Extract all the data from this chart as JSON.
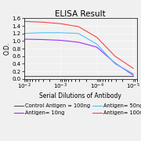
{
  "title": "ELISA Result",
  "xlabel": "Serial Dilutions of Antibody",
  "ylabel": "O.D.",
  "ylim": [
    0,
    1.6
  ],
  "yticks": [
    0,
    0.2,
    0.4,
    0.6,
    0.8,
    1.0,
    1.2,
    1.4,
    1.6
  ],
  "x_values": [
    0.01,
    0.00316,
    0.001,
    0.000316,
    0.0001,
    3.16e-05,
    1e-05
  ],
  "series": [
    {
      "label": "Control Antigen = 100ng",
      "color": "#555555",
      "values": [
        0.07,
        0.07,
        0.07,
        0.07,
        0.07,
        0.07,
        0.07
      ]
    },
    {
      "label": "Antigen= 10ng",
      "color": "#9B30FF",
      "values": [
        1.05,
        1.04,
        1.02,
        0.97,
        0.84,
        0.42,
        0.1
      ]
    },
    {
      "label": "Antigen= 50ng",
      "color": "#4FC3F7",
      "values": [
        1.2,
        1.22,
        1.22,
        1.2,
        0.92,
        0.4,
        0.14
      ]
    },
    {
      "label": "Antigen= 100ng",
      "color": "#FF4040",
      "values": [
        1.52,
        1.5,
        1.46,
        1.38,
        1.1,
        0.6,
        0.28
      ]
    }
  ],
  "legend_fontsize": 4.8,
  "title_fontsize": 7.5,
  "label_fontsize": 5.5,
  "tick_fontsize": 5.0,
  "figsize": [
    1.8,
    1.8
  ],
  "dpi": 100,
  "bg_color": "#f0f0f0"
}
